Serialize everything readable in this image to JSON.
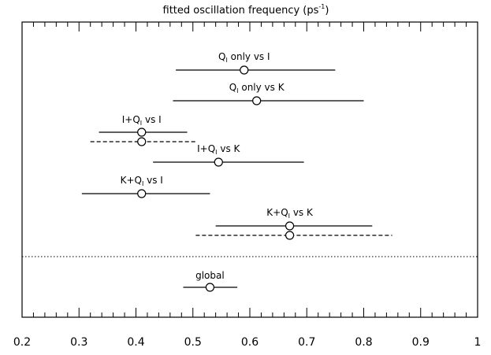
{
  "chart_data": {
    "type": "scatter",
    "title_main": "fitted oscillation frequency  (ps",
    "title_unit_sup": "-1",
    "title_close": ")",
    "xlim": [
      0.2,
      1.0
    ],
    "ticks_major": [
      0.2,
      0.3,
      0.4,
      0.5,
      0.6,
      0.7,
      0.8,
      0.9,
      1.0
    ],
    "tick_labels": [
      "0.2",
      "0.3",
      "0.4",
      "0.5",
      "0.6",
      "0.7",
      "0.8",
      "0.9",
      "1"
    ],
    "grid": false,
    "separator_style": "dotted",
    "points": [
      {
        "label_parts": [
          {
            "t": "Q"
          },
          {
            "t": "I",
            "sub": true
          },
          {
            "t": " only  vs  I"
          }
        ],
        "fits": [
          {
            "value": 0.59,
            "low": 0.47,
            "high": 0.75,
            "style": "solid"
          }
        ]
      },
      {
        "label_parts": [
          {
            "t": "Q"
          },
          {
            "t": "I",
            "sub": true
          },
          {
            "t": " only  vs  K"
          }
        ],
        "fits": [
          {
            "value": 0.612,
            "low": 0.465,
            "high": 0.8,
            "style": "solid"
          }
        ]
      },
      {
        "label_parts": [
          {
            "t": "I+Q"
          },
          {
            "t": "I",
            "sub": true
          },
          {
            "t": "  vs  I"
          }
        ],
        "fits": [
          {
            "value": 0.41,
            "low": 0.335,
            "high": 0.49,
            "style": "solid"
          },
          {
            "value": 0.41,
            "low": 0.32,
            "high": 0.505,
            "style": "dashed"
          }
        ]
      },
      {
        "label_parts": [
          {
            "t": "I+Q"
          },
          {
            "t": "I",
            "sub": true
          },
          {
            "t": "  vs  K"
          }
        ],
        "fits": [
          {
            "value": 0.545,
            "low": 0.43,
            "high": 0.695,
            "style": "solid"
          }
        ]
      },
      {
        "label_parts": [
          {
            "t": "K+Q"
          },
          {
            "t": "I",
            "sub": true
          },
          {
            "t": "  vs  I"
          }
        ],
        "fits": [
          {
            "value": 0.41,
            "low": 0.305,
            "high": 0.53,
            "style": "solid"
          }
        ]
      },
      {
        "label_parts": [
          {
            "t": "K+Q"
          },
          {
            "t": "I",
            "sub": true
          },
          {
            "t": "  vs  K"
          }
        ],
        "fits": [
          {
            "value": 0.67,
            "low": 0.54,
            "high": 0.815,
            "style": "solid"
          },
          {
            "value": 0.67,
            "low": 0.505,
            "high": 0.85,
            "style": "dashed"
          }
        ]
      }
    ],
    "global": {
      "label_parts": [
        {
          "t": "global"
        }
      ],
      "fits": [
        {
          "value": 0.53,
          "low": 0.483,
          "high": 0.578,
          "style": "solid"
        }
      ]
    }
  }
}
